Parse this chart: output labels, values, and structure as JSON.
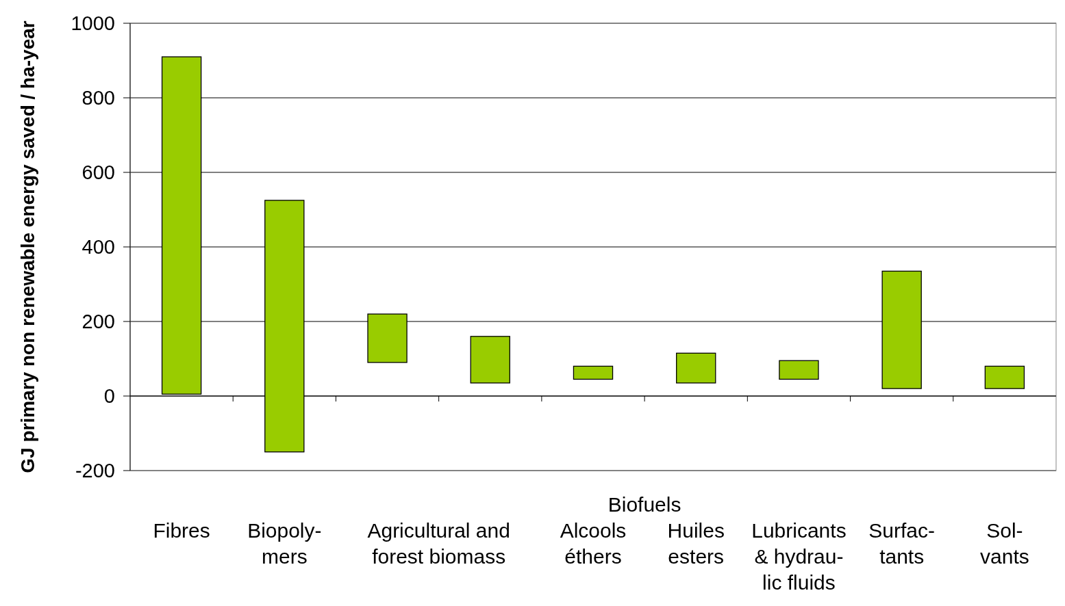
{
  "chart_data": {
    "type": "bar",
    "ylabel": "GJ primary non renewable energy saved / ha-year",
    "categories": [
      "Fibres",
      "Biopoly-\nmers",
      "Agricultural and\nforest biomass",
      null,
      "Alcools\néthers",
      "Huiles\nesters",
      "Lubricants\n& hydrau-\nlic fluids",
      "Surfac-\ntants",
      "Sol-\nvants"
    ],
    "values": [
      905,
      675,
      130,
      125,
      35,
      80,
      50,
      315,
      60
    ],
    "base": [
      5,
      -150,
      90,
      35,
      45,
      35,
      45,
      20,
      20
    ],
    "color": "#99cc00",
    "annotations": [
      "Biofuels"
    ],
    "ylim": [
      -200,
      1000
    ],
    "yticks": [
      -200,
      0,
      200,
      400,
      600,
      800,
      1000
    ],
    "grid": "y"
  }
}
